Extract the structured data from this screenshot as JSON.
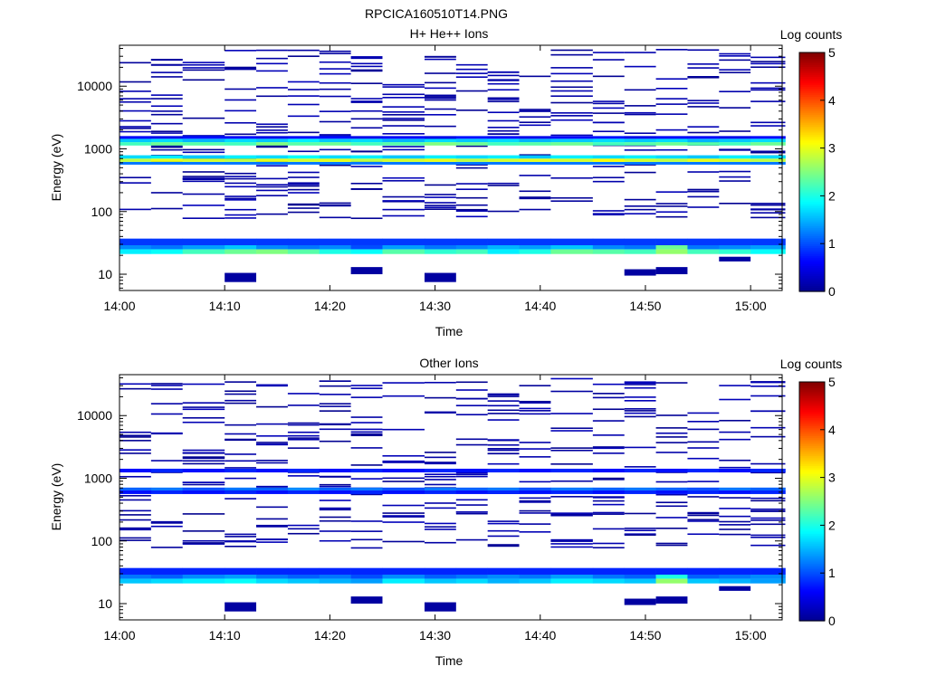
{
  "figure_title": "RPCICA160510T14.PNG",
  "colormap": [
    "#00008f",
    "#0000ff",
    "#0080ff",
    "#00ffff",
    "#80ff80",
    "#ffff00",
    "#ff8000",
    "#ff0000",
    "#800000"
  ],
  "chart_data": [
    {
      "type": "heatmap",
      "title": "H+ He++ Ions",
      "xlabel": "Time",
      "ylabel": "Energy (eV)",
      "y_scale": "log",
      "xlim": [
        "14:00",
        "15:03"
      ],
      "ylim": [
        5.5,
        45000
      ],
      "x_ticks": [
        "14:00",
        "14:10",
        "14:20",
        "14:30",
        "14:40",
        "14:50",
        "15:00"
      ],
      "y_ticks": [
        "10",
        "100",
        "1000",
        "10000"
      ],
      "colorbar": {
        "label": "Log counts",
        "min": 0,
        "max": 5,
        "ticks": [
          "0",
          "1",
          "2",
          "3",
          "4",
          "5"
        ]
      },
      "time_bins": [
        "14:00",
        "14:03",
        "14:06",
        "14:10",
        "14:13",
        "14:16",
        "14:19",
        "14:22",
        "14:25",
        "14:29",
        "14:32",
        "14:35",
        "14:38",
        "14:41",
        "14:45",
        "14:48",
        "14:51",
        "14:54",
        "14:57",
        "15:00"
      ],
      "bands": [
        {
          "energy": [
            21,
            25
          ],
          "values": [
            1.8,
            1.9,
            2.2,
            2.4,
            2.5,
            2.3,
            2.0,
            1.9,
            2.3,
            2.1,
            2.2,
            1.8,
            2.0,
            2.4,
            2.3,
            2.2,
            2.6,
            2.2,
            2.1,
            1.9
          ]
        },
        {
          "energy": [
            25,
            29
          ],
          "values": [
            1.3,
            1.2,
            1.4,
            1.6,
            1.3,
            1.2,
            1.3,
            1.0,
            1.4,
            1.2,
            1.3,
            1.5,
            1.4,
            1.6,
            1.3,
            1.2,
            2.4,
            1.2,
            1.3,
            1.4
          ]
        },
        {
          "energy": [
            29,
            37
          ],
          "values": [
            0.9,
            0.9,
            0.9,
            0.9,
            0.9,
            0.9,
            0.9,
            0.9,
            0.9,
            0.9,
            0.9,
            0.9,
            0.9,
            0.9,
            0.9,
            0.9,
            0.9,
            0.9,
            0.9,
            0.9
          ]
        },
        {
          "energy": [
            560,
            620
          ],
          "values": [
            1.2,
            1.2,
            1.2,
            1.2,
            1.2,
            1.2,
            1.2,
            1.2,
            1.2,
            1.2,
            1.2,
            1.2,
            1.2,
            1.2,
            1.2,
            1.2,
            1.2,
            1.2,
            1.2,
            1.2
          ]
        },
        {
          "energy": [
            620,
            700
          ],
          "values": [
            2.8,
            3.0,
            2.9,
            2.8,
            3.0,
            2.9,
            3.0,
            2.8,
            2.9,
            3.0,
            2.8,
            2.9,
            3.0,
            2.9,
            3.1,
            2.9,
            2.8,
            3.0,
            2.9,
            2.8
          ]
        },
        {
          "energy": [
            700,
            790
          ],
          "values": [
            1.7,
            1.8,
            1.6,
            1.8,
            1.7,
            1.9,
            1.7,
            1.8,
            1.6,
            1.8,
            1.7,
            1.8,
            1.6,
            1.8,
            1.7,
            1.8,
            1.7,
            1.6,
            1.8,
            1.7
          ]
        },
        {
          "energy": [
            1130,
            1280
          ],
          "values": [
            2.2,
            2.4,
            2.3,
            2.2,
            2.5,
            2.3,
            2.4,
            2.2,
            2.3,
            2.5,
            2.4,
            2.2,
            2.3,
            2.4,
            2.2,
            2.3,
            2.4,
            2.3,
            2.2,
            2.4
          ]
        },
        {
          "energy": [
            1280,
            1450
          ],
          "values": [
            1.6,
            1.7,
            1.5,
            1.7,
            1.6,
            1.8,
            1.6,
            1.7,
            1.5,
            1.7,
            1.6,
            1.7,
            1.5,
            1.6,
            1.7,
            1.6,
            1.7,
            1.5,
            1.6,
            1.7
          ]
        },
        {
          "energy": [
            1450,
            1600
          ],
          "values": [
            0.6,
            0.5,
            0.7,
            0.6,
            0.5,
            0.6,
            0.7,
            0.5,
            0.6,
            0.5,
            0.7,
            0.6,
            0.5,
            0.6,
            0.7,
            0.5,
            0.6,
            0.6,
            0.5,
            0.6
          ]
        }
      ],
      "sparse_intensity": 0.25
    },
    {
      "type": "heatmap",
      "title": "Other Ions",
      "xlabel": "Time",
      "ylabel": "Energy (eV)",
      "y_scale": "log",
      "xlim": [
        "14:00",
        "15:03"
      ],
      "ylim": [
        5.5,
        45000
      ],
      "x_ticks": [
        "14:00",
        "14:10",
        "14:20",
        "14:30",
        "14:40",
        "14:50",
        "15:00"
      ],
      "y_ticks": [
        "10",
        "100",
        "1000",
        "10000"
      ],
      "colorbar": {
        "label": "Log counts",
        "min": 0,
        "max": 5,
        "ticks": [
          "0",
          "1",
          "2",
          "3",
          "4",
          "5"
        ]
      },
      "time_bins": [
        "14:00",
        "14:03",
        "14:06",
        "14:10",
        "14:13",
        "14:16",
        "14:19",
        "14:22",
        "14:25",
        "14:29",
        "14:32",
        "14:35",
        "14:38",
        "14:41",
        "14:45",
        "14:48",
        "14:51",
        "14:54",
        "14:57",
        "15:00"
      ],
      "bands": [
        {
          "energy": [
            21,
            25
          ],
          "values": [
            1.6,
            1.7,
            1.8,
            1.9,
            1.7,
            1.6,
            1.5,
            1.4,
            1.8,
            1.6,
            1.7,
            1.5,
            1.6,
            1.8,
            1.7,
            1.6,
            2.6,
            1.6,
            1.5,
            1.4
          ]
        },
        {
          "energy": [
            25,
            29
          ],
          "values": [
            1.2,
            1.1,
            1.3,
            1.4,
            1.2,
            1.1,
            1.2,
            1.0,
            1.3,
            1.1,
            1.2,
            1.3,
            1.2,
            1.4,
            1.2,
            1.1,
            2.0,
            1.1,
            1.2,
            1.3
          ]
        },
        {
          "energy": [
            29,
            37
          ],
          "values": [
            0.8,
            0.8,
            0.8,
            0.8,
            0.8,
            0.8,
            0.8,
            0.8,
            0.8,
            0.8,
            0.8,
            0.8,
            0.8,
            0.8,
            0.8,
            0.8,
            0.8,
            0.8,
            0.8,
            0.8
          ]
        },
        {
          "energy": [
            560,
            640
          ],
          "values": [
            0.7,
            0.8,
            0.7,
            0.8,
            0.7,
            0.8,
            0.7,
            0.8,
            0.7,
            0.8,
            0.7,
            0.8,
            0.7,
            0.8,
            0.7,
            0.8,
            0.7,
            0.8,
            0.7,
            0.8
          ]
        },
        {
          "energy": [
            640,
            710
          ],
          "values": [
            1.1,
            1.2,
            1.0,
            1.2,
            1.1,
            1.3,
            1.1,
            1.2,
            1.0,
            1.2,
            1.1,
            1.2,
            1.0,
            1.2,
            1.1,
            1.2,
            1.1,
            1.0,
            1.2,
            1.1
          ]
        },
        {
          "energy": [
            1240,
            1420
          ],
          "values": [
            0.7,
            0.8,
            0.7,
            0.8,
            0.7,
            0.8,
            0.7,
            0.8,
            0.7,
            0.8,
            0.7,
            0.8,
            0.7,
            0.8,
            0.7,
            0.8,
            0.7,
            0.8,
            0.7,
            0.8
          ]
        }
      ],
      "sparse_intensity": 0.25
    }
  ]
}
